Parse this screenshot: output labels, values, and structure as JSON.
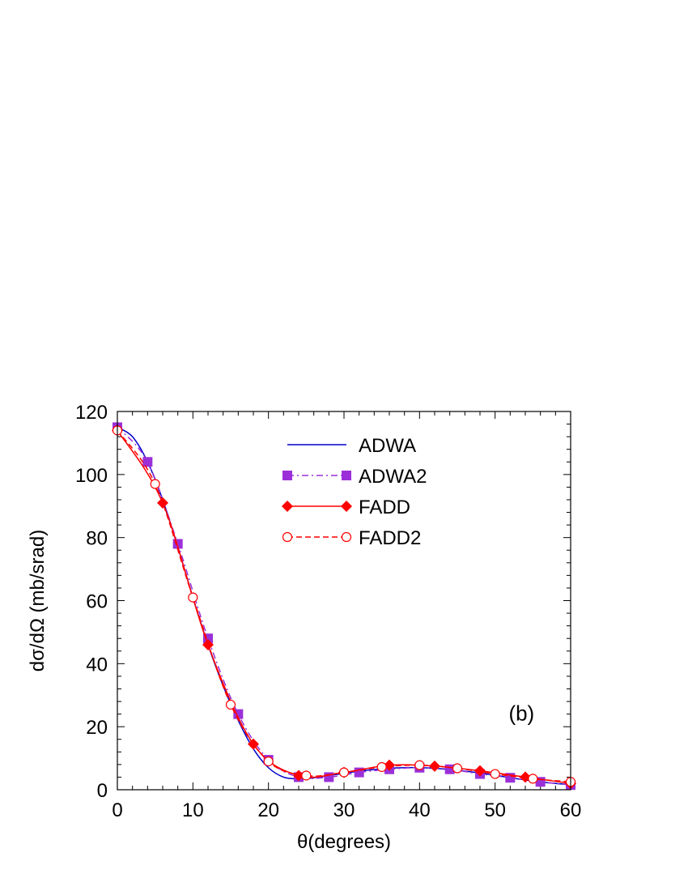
{
  "chart_data": {
    "type": "line",
    "panel_label": "(b)",
    "xlabel": "θ(degrees)",
    "ylabel": "dσ/dΩ (mb/srad)",
    "xlim": [
      0,
      60
    ],
    "ylim": [
      0,
      120
    ],
    "xticks": [
      0,
      10,
      20,
      30,
      40,
      50,
      60
    ],
    "yticks": [
      0,
      20,
      40,
      60,
      80,
      100,
      120
    ],
    "grid": false,
    "legend_position": "top-center",
    "series": [
      {
        "name": "ADWA",
        "color": "#0000cc",
        "line_style": "solid",
        "marker": "none",
        "x": [
          0,
          2,
          4,
          6,
          8,
          10,
          12,
          14,
          16,
          18,
          20,
          22,
          24,
          26,
          28,
          30,
          32,
          34,
          36,
          38,
          40,
          42,
          44,
          46,
          48,
          50,
          52,
          54,
          56,
          58,
          60
        ],
        "y": [
          115,
          112,
          104,
          92,
          77,
          61,
          46,
          33,
          22,
          13,
          7,
          4,
          3.5,
          3.8,
          4.5,
          5.2,
          5.9,
          6.4,
          6.8,
          7.0,
          7.0,
          6.8,
          6.4,
          5.9,
          5.3,
          4.6,
          3.8,
          3.1,
          2.5,
          2.0,
          1.7
        ]
      },
      {
        "name": "ADWA2",
        "color": "#9b30d9",
        "line_style": "dash-dot",
        "marker": "filled-square",
        "x": [
          0,
          4,
          8,
          12,
          16,
          20,
          24,
          28,
          32,
          36,
          40,
          44,
          48,
          52,
          56,
          60
        ],
        "y": [
          115,
          104,
          78,
          48,
          24,
          9.5,
          4,
          4,
          5.5,
          6.5,
          7,
          6.5,
          5,
          3.8,
          2.5,
          1.5
        ]
      },
      {
        "name": "FADD",
        "color": "#ff0000",
        "line_style": "solid",
        "marker": "filled-diamond",
        "x": [
          0,
          6,
          12,
          18,
          24,
          30,
          36,
          42,
          48,
          54,
          60
        ],
        "y": [
          114,
          91,
          46,
          14.5,
          4.5,
          5.5,
          7.8,
          7.5,
          6,
          4,
          2
        ]
      },
      {
        "name": "FADD2",
        "color": "#ff0000",
        "line_style": "dashed",
        "marker": "open-circle",
        "x": [
          0,
          5,
          10,
          15,
          20,
          25,
          30,
          35,
          40,
          45,
          50,
          55,
          60
        ],
        "y": [
          114,
          97,
          61,
          27,
          9,
          4.5,
          5.5,
          7.2,
          7.8,
          6.8,
          5,
          3.5,
          2.5
        ]
      }
    ]
  }
}
